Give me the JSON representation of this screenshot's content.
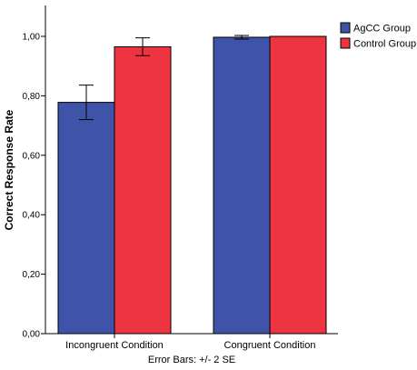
{
  "chart_data": {
    "type": "bar",
    "ylabel": "Correct Response Rate",
    "xlabel": "",
    "ylim": [
      0,
      1
    ],
    "yticks": [
      "0,00",
      "0,20",
      "0,40",
      "0,60",
      "0,80",
      "1,00"
    ],
    "ytick_values": [
      0,
      0.2,
      0.4,
      0.6,
      0.8,
      1.0
    ],
    "categories": [
      "Incongruent Condition",
      "Congruent Condition"
    ],
    "series": [
      {
        "name": "AgCC Group",
        "color": "#3F53A8",
        "values": [
          0.778,
          0.997
        ],
        "error": [
          0.058,
          0.006
        ]
      },
      {
        "name": "Control Group",
        "color": "#EE3440",
        "values": [
          0.965,
          1.0
        ],
        "error": [
          0.03,
          0.0
        ]
      }
    ],
    "grid": false,
    "legend_position": "top-right",
    "footnote": "Error Bars: +/- 2 SE"
  }
}
